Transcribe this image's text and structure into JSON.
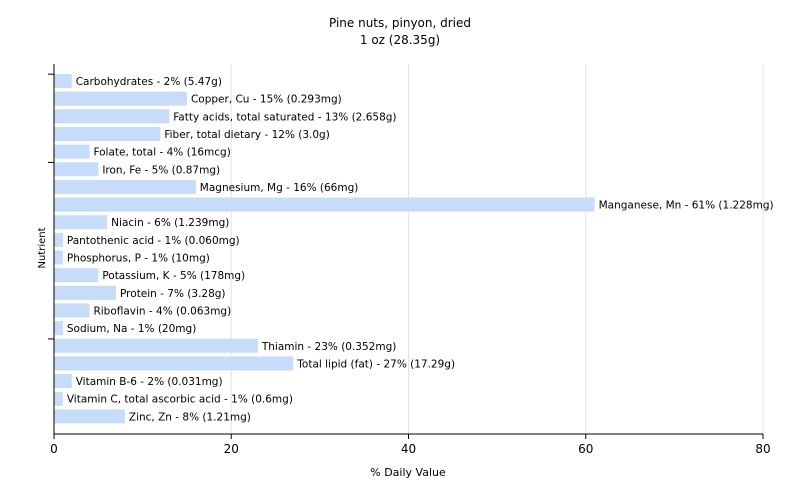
{
  "chart_data": {
    "type": "bar",
    "orientation": "horizontal",
    "title": "Pine nuts, pinyon, dried",
    "subtitle": "1 oz (28.35g)",
    "xlabel": "% Daily Value",
    "ylabel": "Nutrient",
    "xlim": [
      0,
      80
    ],
    "xticks": [
      0,
      20,
      40,
      60,
      80
    ],
    "grid": true,
    "bar_color": "#c6dcf8",
    "categories": [
      "Carbohydrates",
      "Copper, Cu",
      "Fatty acids, total saturated",
      "Fiber, total dietary",
      "Folate, total",
      "Iron, Fe",
      "Magnesium, Mg",
      "Manganese, Mn",
      "Niacin",
      "Pantothenic acid",
      "Phosphorus, P",
      "Potassium, K",
      "Protein",
      "Riboflavin",
      "Sodium, Na",
      "Thiamin",
      "Total lipid (fat)",
      "Vitamin B-6",
      "Vitamin C, total ascorbic acid",
      "Zinc, Zn"
    ],
    "values": [
      2,
      15,
      13,
      12,
      4,
      5,
      16,
      61,
      6,
      1,
      1,
      5,
      7,
      4,
      1,
      23,
      27,
      2,
      1,
      8
    ],
    "labels": [
      "Carbohydrates - 2% (5.47g)",
      "Copper, Cu - 15% (0.293mg)",
      "Fatty acids, total saturated - 13% (2.658g)",
      "Fiber, total dietary - 12% (3.0g)",
      "Folate, total - 4% (16mcg)",
      "Iron, Fe - 5% (0.87mg)",
      "Magnesium, Mg - 16% (66mg)",
      "Manganese, Mn - 61% (1.228mg)",
      "Niacin - 6% (1.239mg)",
      "Pantothenic acid - 1% (0.060mg)",
      "Phosphorus, P - 1% (10mg)",
      "Potassium, K - 5% (178mg)",
      "Protein - 7% (3.28g)",
      "Riboflavin - 4% (0.063mg)",
      "Sodium, Na - 1% (20mg)",
      "Thiamin - 23% (0.352mg)",
      "Total lipid (fat) - 27% (17.29g)",
      "Vitamin B-6 - 2% (0.031mg)",
      "Vitamin C, total ascorbic acid - 1% (0.6mg)",
      "Zinc, Zn - 8% (1.21mg)"
    ]
  }
}
